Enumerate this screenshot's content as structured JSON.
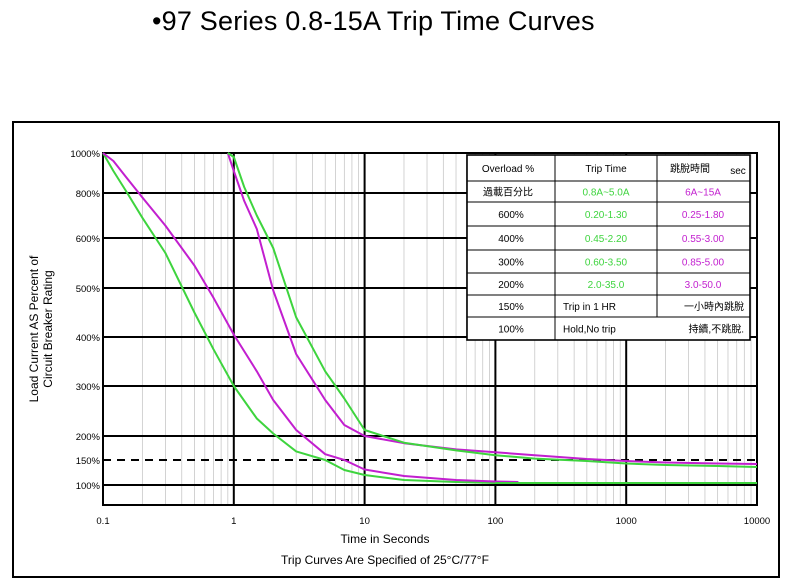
{
  "slide": {
    "title": "•97 Series 0.8-15A Trip Time Curves"
  },
  "colors": {
    "green": "#3ed43e",
    "magenta": "#c21fcf",
    "grid": "#000000",
    "minor_grid": "#c8c8c8"
  },
  "table": {
    "header": {
      "overload": "Overload %",
      "trip_time": "Trip Time",
      "chinese_time": "跳脫時間",
      "unit": "sec"
    },
    "subheader": {
      "overload": "過載百分比",
      "low": "0.8A~5.0A",
      "high": "6A~15A"
    },
    "rows": [
      {
        "overload": "600%",
        "low": "0.20-1.30",
        "high": "0.25-1.80"
      },
      {
        "overload": "400%",
        "low": "0.45-2.20",
        "high": "0.55-3.00"
      },
      {
        "overload": "300%",
        "low": "0.60-3.50",
        "high": "0.85-5.00"
      },
      {
        "overload": "200%",
        "low": "2.0-35.0",
        "high": "3.0-50.0"
      }
    ],
    "notes": [
      {
        "overload": "150%",
        "text": "Trip in 1 HR",
        "chinese": "一小時內跳脫"
      },
      {
        "overload": "100%",
        "text": "Hold,No trip",
        "chinese": "持續,不跳脫."
      }
    ]
  },
  "chart_data": {
    "type": "line",
    "xlabel": "Time in Seconds",
    "ylabel": "Load Current AS Percent of Circuit Breaker Rating",
    "note": "Trip Curves Are Specified of 25°C/77°F",
    "x_scale": "log",
    "xlim": [
      0.1,
      10000
    ],
    "x_ticks": [
      "0.1",
      "1",
      "10",
      "100",
      "1000",
      "10000"
    ],
    "y_ticks": [
      "100%",
      "150%",
      "200%",
      "300%",
      "400%",
      "500%",
      "600%",
      "800%",
      "1000%"
    ],
    "grid": true,
    "reference_line": {
      "y": "150%",
      "style": "dashed"
    },
    "series": [
      {
        "color": "green",
        "x": [
          0.1,
          0.12,
          0.15,
          0.2,
          0.3,
          0.5,
          0.7,
          1,
          1.5,
          2,
          3,
          5,
          7,
          10,
          20,
          50,
          100,
          150
        ],
        "y": [
          "1000%",
          "910%",
          "810%",
          "690%",
          "570%",
          "450%",
          "375%",
          "300%",
          "235%",
          "205%",
          "168%",
          "150%",
          "130%",
          "120%",
          "110%",
          "106%",
          "104%",
          "104%"
        ]
      },
      {
        "color": "magenta",
        "x": [
          0.1,
          0.12,
          0.15,
          0.2,
          0.3,
          0.5,
          0.7,
          1,
          1.5,
          2,
          3,
          5,
          7,
          10,
          20,
          50,
          100,
          150
        ],
        "y": [
          "1000%",
          "960%",
          "880%",
          "780%",
          "655%",
          "545%",
          "480%",
          "405%",
          "330%",
          "272%",
          "212%",
          "162%",
          "150%",
          "131%",
          "118%",
          "110%",
          "107%",
          "106%"
        ]
      },
      {
        "color": "magenta",
        "x": [
          0.9,
          1,
          1.2,
          1.5,
          2,
          3,
          5,
          7,
          10,
          20,
          50,
          100,
          200,
          500,
          1000,
          2000,
          5000,
          10000
        ],
        "y": [
          "1000%",
          "910%",
          "765%",
          "640%",
          "495%",
          "365%",
          "272%",
          "222%",
          "200%",
          "185%",
          "172%",
          "166%",
          "160%",
          "152%",
          "148%",
          "145%",
          "143%",
          "142%"
        ]
      },
      {
        "color": "green",
        "x": [
          0.9,
          1,
          1.2,
          1.5,
          2,
          3,
          5,
          7,
          10,
          20,
          50,
          100,
          200,
          500,
          1000,
          2000,
          5000,
          10000
        ],
        "y": [
          "1000%",
          "980%",
          "830%",
          "700%",
          "580%",
          "440%",
          "330%",
          "275%",
          "212%",
          "186%",
          "170%",
          "160%",
          "153%",
          "148%",
          "143%",
          "140%",
          "138%",
          "136%"
        ]
      },
      {
        "color": "green",
        "x": [
          100,
          200,
          500,
          1000,
          2000,
          5000,
          10000
        ],
        "y": [
          "104%",
          "104%",
          "104%",
          "104%",
          "104%",
          "104%",
          "104%"
        ]
      }
    ]
  }
}
